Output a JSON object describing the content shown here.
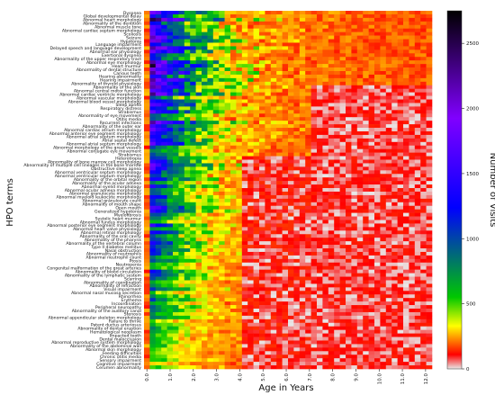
{
  "chart_data": {
    "type": "heatmap",
    "xlabel": "Age in Years",
    "ylabel": "HPO terms",
    "colorbar_label": "Number of Visits",
    "x_range": [
      0,
      12.4
    ],
    "x_ticks": [
      "0.0",
      "1.0",
      "2.0",
      "3.0",
      "4.0",
      "5.0",
      "6.0",
      "7.0",
      "8.0",
      "9.0",
      "10.0",
      "11.0",
      "12.0"
    ],
    "colorbar_range": [
      0,
      2750
    ],
    "colorbar_ticks": [
      "0",
      "500",
      "1000",
      "1500",
      "2000",
      "2500"
    ],
    "colormap": [
      "#e8e8e8",
      "#ffffff",
      "#ff0000",
      "#ffa500",
      "#ffff00",
      "#00c800",
      "#0000ff",
      "#8000ff",
      "#000000"
    ],
    "cell_columns_per_year": 4,
    "rows": [
      "Dyspnea",
      "Global developmental delay",
      "Abnormal heart morphology",
      "Abnormality of the dentition",
      "Abnormal muscle tone",
      "Abnormal cardiac septum morphology",
      "Scoliosis",
      "Seizure",
      "Hypotonia",
      "Language impairment",
      "Delayed speech and language development",
      "Abnormal ear physiology",
      "Exertional dyspnea",
      "Abnormality of the upper respiratory tract",
      "Abnormal eye morphology",
      "Heart murmur",
      "Abnormality of dental structure",
      "Carious teeth",
      "Hearing abnormality",
      "Hearing impairment",
      "Abnormality of thyroid physiology",
      "Abnormality of the skin",
      "Abnormal central motor function",
      "Abnormal cardiac ventricle morphology",
      "Abnormal vascular morphology",
      "Abnormal blood vessel morphology",
      "Sleep apnea",
      "Respiratory distress",
      "Strabismus",
      "Abnormality of eye movement",
      "Otitis media",
      "Recurrent infections",
      "Abnormality of the outer ear",
      "Abnormal cardiac atrium morphology",
      "Abnormal anterior eye segment morphology",
      "Abnormal atrial septum morphology",
      "Atrial septal defect",
      "Abnormal atrial septum morphology",
      "Abnormal morphology of the great vessels",
      "Abnormal conjugate eye movement",
      "Strabismus",
      "Heterotropia",
      "Abnormality of bone marrow cell morphology",
      "Abnormality of multiple cell lineages in the bone marrow",
      "Obstructive sleep apnea",
      "Abnormal ventricular septum morphology",
      "Abnormal ventricular septum morphology",
      "Abnormality of the orbital region",
      "Abnormality of the ocular adnexa",
      "Abnormal eyelid morphology",
      "Abnormal ocular adnexa morphology",
      "Abnormal granulocyte morphology",
      "Abnormal myeloid leukocyte morphology",
      "Abnormal granulocyte count",
      "Abnormality of mouth shape",
      "Open mouth",
      "Generalized hypotonia",
      "Myelofibrosis",
      "Systolic heart murmur",
      "Abnormal fundus morphology",
      "Abnormal posterior eye segment morphology",
      "Abnormal heart valve physiology",
      "Abnormal retinal morphology",
      "Abnormality of the oral cavity",
      "Abnormality of the pharynx",
      "Abnormality of the vertebral column",
      "Type II diabetes mellitus",
      "Nasal obstruction",
      "Abnormality of neutrophils",
      "Abnormal neutrophil count",
      "Ptosis",
      "Neutropenia",
      "Congenital malformation of the great arteries",
      "Abnormality of blood circulation",
      "Abnormality of the lymphatic system",
      "Scarring",
      "Abnormality of coordination",
      "Abnormality of refraction",
      "Visual impairment",
      "Abnormal nasal mucosa secretion",
      "Rhinorrhea",
      "Erythema",
      "Incoordination",
      "Peripheral neuropathy",
      "Abnormality of the auditory canal",
      "Stenosis",
      "Abnormal appendicular skeleton morphology",
      "Failure to thrive",
      "Patent ductus arteriosus",
      "Abnormality of dental eruption",
      "Hematological neoplasm",
      "Impacted tooth",
      "Dental malocclusion",
      "Abnormal reproductive system morphology",
      "Abnormality of the abdominal wall",
      "Abnormal skin morphology",
      "Feeding difficulties",
      "Chronic otitis media",
      "Sensory impairment",
      "Cognitive impairment",
      "Cerumen abnormality"
    ],
    "values": "matrix: rows x 50 columns (ages 0.0-12.4 in 0.25-year bins), visit counts 0-2750; early-age columns high (yellow/green/blue/black), later columns near 0 (red/grey)"
  }
}
